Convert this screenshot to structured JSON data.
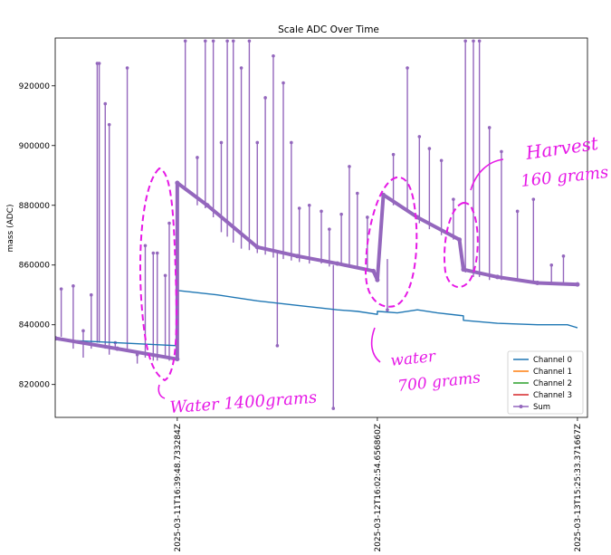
{
  "chart_data": {
    "type": "line",
    "title": "Scale ADC Over Time",
    "xlabel": "",
    "ylabel": "mass (ADC)",
    "ylim": [
      809000,
      936000
    ],
    "xlim": [
      -0.61,
      2.05
    ],
    "yticks": [
      820000,
      840000,
      860000,
      880000,
      900000,
      920000
    ],
    "ytick_labels": [
      "820000",
      "840000",
      "860000",
      "880000",
      "900000",
      "920000"
    ],
    "xticks": [
      0,
      1,
      2
    ],
    "xtick_labels": [
      "2025-03-11T16:39:48.733284Z",
      "2025-03-12T16:02:54.656860Z",
      "2025-03-13T15:25:33.371667Z"
    ],
    "legend_position": "lower right",
    "series": [
      {
        "name": "Channel 0",
        "color": "#1f77b4",
        "x": [
          -0.61,
          -0.3,
          0.0,
          0.0,
          0.2,
          0.4,
          0.6,
          0.8,
          0.9,
          1.0,
          1.0,
          1.1,
          1.2,
          1.3,
          1.43,
          1.43,
          1.6,
          1.8,
          1.95,
          2.0
        ],
        "y": [
          835000,
          834000,
          833000,
          851500,
          850000,
          848000,
          846500,
          845000,
          844500,
          843500,
          844500,
          844000,
          845000,
          844000,
          843000,
          841500,
          840500,
          840000,
          840000,
          839000
        ]
      },
      {
        "name": "Channel 1",
        "color": "#ff7f0e",
        "x": [],
        "y": []
      },
      {
        "name": "Channel 2",
        "color": "#2ca02c",
        "x": [],
        "y": []
      },
      {
        "name": "Channel 3",
        "color": "#d62728",
        "x": [],
        "y": []
      },
      {
        "name": "Sum",
        "color": "#9467bd",
        "x": [
          -0.61,
          -0.3,
          0.0,
          0.0,
          0.15,
          0.4,
          0.6,
          0.8,
          0.98,
          1.0,
          1.03,
          1.2,
          1.41,
          1.43,
          1.6,
          1.8,
          2.0
        ],
        "y": [
          835500,
          832000,
          828500,
          887500,
          880000,
          866000,
          863000,
          860500,
          858000,
          855000,
          883500,
          876000,
          868500,
          858500,
          856000,
          854000,
          853500
        ]
      }
    ],
    "sum_spikes": [
      [
        -0.58,
        836000,
        852000
      ],
      [
        -0.52,
        832000,
        853000
      ],
      [
        -0.47,
        829000,
        838000
      ],
      [
        -0.43,
        832000,
        850000
      ],
      [
        -0.4,
        834000,
        927500
      ],
      [
        -0.39,
        834000,
        927500
      ],
      [
        -0.36,
        832000,
        914000
      ],
      [
        -0.34,
        830000,
        907000
      ],
      [
        -0.31,
        832000,
        834000
      ],
      [
        -0.25,
        832000,
        926000
      ],
      [
        -0.2,
        827000,
        830000
      ],
      [
        -0.16,
        829000,
        866500
      ],
      [
        -0.12,
        828000,
        864000
      ],
      [
        -0.1,
        828000,
        864000
      ],
      [
        -0.06,
        829000,
        856500
      ],
      [
        -0.04,
        828000,
        874000
      ],
      [
        0.04,
        886000,
        935000
      ],
      [
        0.1,
        880000,
        896000
      ],
      [
        0.14,
        879000,
        935000
      ],
      [
        0.18,
        876000,
        935000
      ],
      [
        0.22,
        871000,
        901000
      ],
      [
        0.25,
        869500,
        935000
      ],
      [
        0.28,
        867500,
        935000
      ],
      [
        0.32,
        865500,
        926000
      ],
      [
        0.36,
        865000,
        935000
      ],
      [
        0.4,
        864000,
        901000
      ],
      [
        0.44,
        863500,
        916000
      ],
      [
        0.48,
        862500,
        930000
      ],
      [
        0.53,
        862000,
        921000
      ],
      [
        0.57,
        861500,
        901000
      ],
      [
        0.61,
        861000,
        879000
      ],
      [
        0.66,
        860500,
        880000
      ],
      [
        0.72,
        860500,
        878000
      ],
      [
        0.76,
        859500,
        872000
      ],
      [
        0.82,
        860000,
        877000
      ],
      [
        0.86,
        860000,
        893000
      ],
      [
        0.9,
        859000,
        884000
      ],
      [
        0.95,
        858000,
        876000
      ],
      [
        1.08,
        880000,
        897000
      ],
      [
        1.15,
        878000,
        926000
      ],
      [
        1.21,
        874000,
        903000
      ],
      [
        1.26,
        872000,
        899000
      ],
      [
        1.32,
        870000,
        895000
      ],
      [
        1.38,
        868500,
        882000
      ],
      [
        1.44,
        857500,
        935000
      ],
      [
        1.48,
        856000,
        935000
      ],
      [
        1.51,
        856000,
        935000
      ],
      [
        1.56,
        855000,
        906000
      ],
      [
        1.62,
        855000,
        898000
      ],
      [
        1.7,
        854500,
        878000
      ],
      [
        1.78,
        854000,
        882000
      ],
      [
        1.87,
        853500,
        860000
      ],
      [
        1.93,
        853500,
        863000
      ]
    ],
    "sum_drops": [
      [
        0.5,
        865000,
        833000
      ],
      [
        0.78,
        860000,
        812000
      ],
      [
        1.05,
        862000,
        845000
      ]
    ],
    "annotations": [
      "Water 1400grams",
      "water",
      "700 grams",
      "Harvest",
      "160 grams"
    ]
  }
}
